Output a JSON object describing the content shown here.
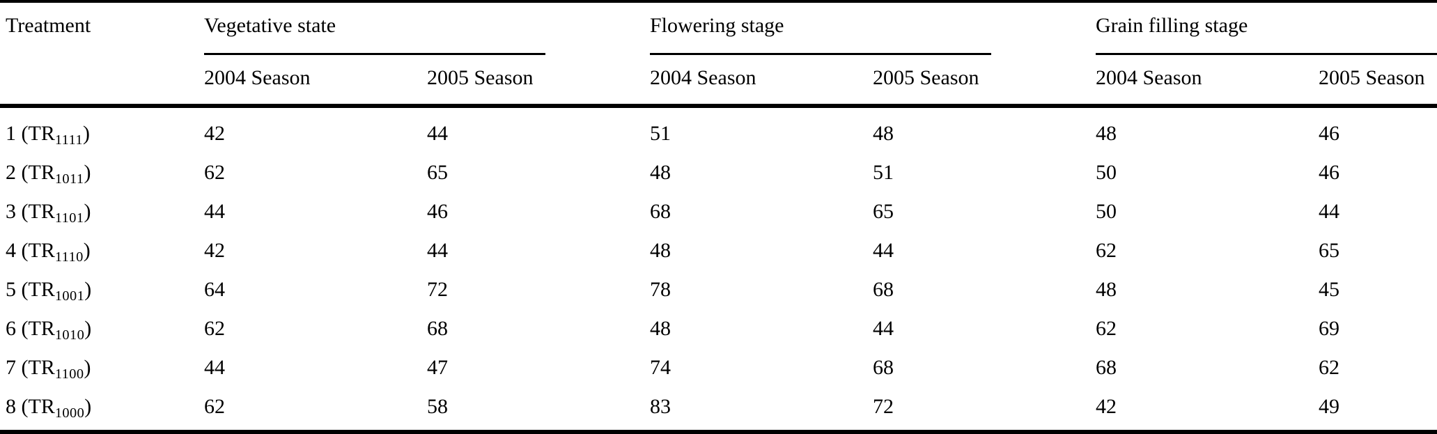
{
  "page": {
    "background_color": "#ffffff",
    "text_color": "#000000",
    "rule_color": "#000000"
  },
  "table": {
    "treatment_header": "Treatment",
    "groups": [
      {
        "label": "Vegetative state",
        "seasons": [
          "2004 Season",
          "2005 Season"
        ]
      },
      {
        "label": "Flowering stage",
        "seasons": [
          "2004 Season",
          "2005 Season"
        ]
      },
      {
        "label": "Grain filling stage",
        "seasons": [
          "2004 Season",
          "2005 Season"
        ]
      }
    ],
    "rows": [
      {
        "treatment_number": "1",
        "treatment_code": "TR",
        "treatment_subscript": "1111",
        "values": [
          "42",
          "44",
          "51",
          "48",
          "48",
          "46"
        ]
      },
      {
        "treatment_number": "2",
        "treatment_code": "TR",
        "treatment_subscript": "1011",
        "values": [
          "62",
          "65",
          "48",
          "51",
          "50",
          "46"
        ]
      },
      {
        "treatment_number": "3",
        "treatment_code": "TR",
        "treatment_subscript": "1101",
        "values": [
          "44",
          "46",
          "68",
          "65",
          "50",
          "44"
        ]
      },
      {
        "treatment_number": "4",
        "treatment_code": "TR",
        "treatment_subscript": "1110",
        "values": [
          "42",
          "44",
          "48",
          "44",
          "62",
          "65"
        ]
      },
      {
        "treatment_number": "5",
        "treatment_code": "TR",
        "treatment_subscript": "1001",
        "values": [
          "64",
          "72",
          "78",
          "68",
          "48",
          "45"
        ]
      },
      {
        "treatment_number": "6",
        "treatment_code": "TR",
        "treatment_subscript": "1010",
        "values": [
          "62",
          "68",
          "48",
          "44",
          "62",
          "69"
        ]
      },
      {
        "treatment_number": "7",
        "treatment_code": "TR",
        "treatment_subscript": "1100",
        "values": [
          "44",
          "47",
          "74",
          "68",
          "68",
          "62"
        ]
      },
      {
        "treatment_number": "8",
        "treatment_code": "TR",
        "treatment_subscript": "1000",
        "values": [
          "62",
          "58",
          "83",
          "72",
          "42",
          "49"
        ]
      }
    ]
  }
}
